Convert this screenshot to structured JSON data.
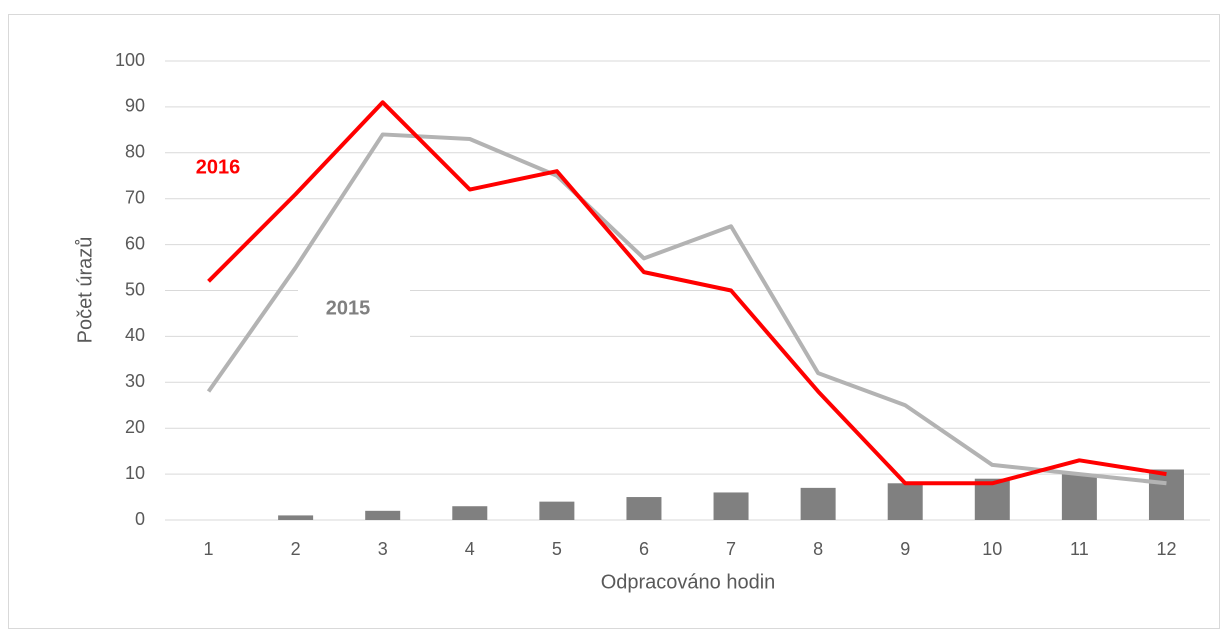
{
  "chart_data": {
    "type": "combo",
    "x_label": "Odpracováno hodin",
    "y_label": "Počet úrazů",
    "categories": [
      "1",
      "2",
      "3",
      "4",
      "5",
      "6",
      "7",
      "8",
      "9",
      "10",
      "11",
      "12"
    ],
    "series": [
      {
        "type": "bar",
        "color": "#808080",
        "values": [
          0,
          1,
          2,
          3,
          4,
          5,
          6,
          7,
          8,
          9,
          10,
          11
        ]
      },
      {
        "type": "line",
        "name": "2015",
        "color": "#b3b3b3",
        "label_color": "#808080",
        "values": [
          28,
          55,
          84,
          83,
          75,
          57,
          64,
          32,
          25,
          12,
          10,
          8
        ]
      },
      {
        "type": "line",
        "name": "2016",
        "color": "#ff0000",
        "label_color": "#ff0000",
        "values": [
          52,
          71,
          91,
          72,
          76,
          54,
          50,
          28,
          8,
          8,
          13,
          10
        ]
      }
    ],
    "ylim": [
      0,
      100
    ],
    "yticks": [
      0,
      10,
      20,
      30,
      40,
      50,
      60,
      70,
      80,
      90,
      100
    ],
    "grid": true
  }
}
